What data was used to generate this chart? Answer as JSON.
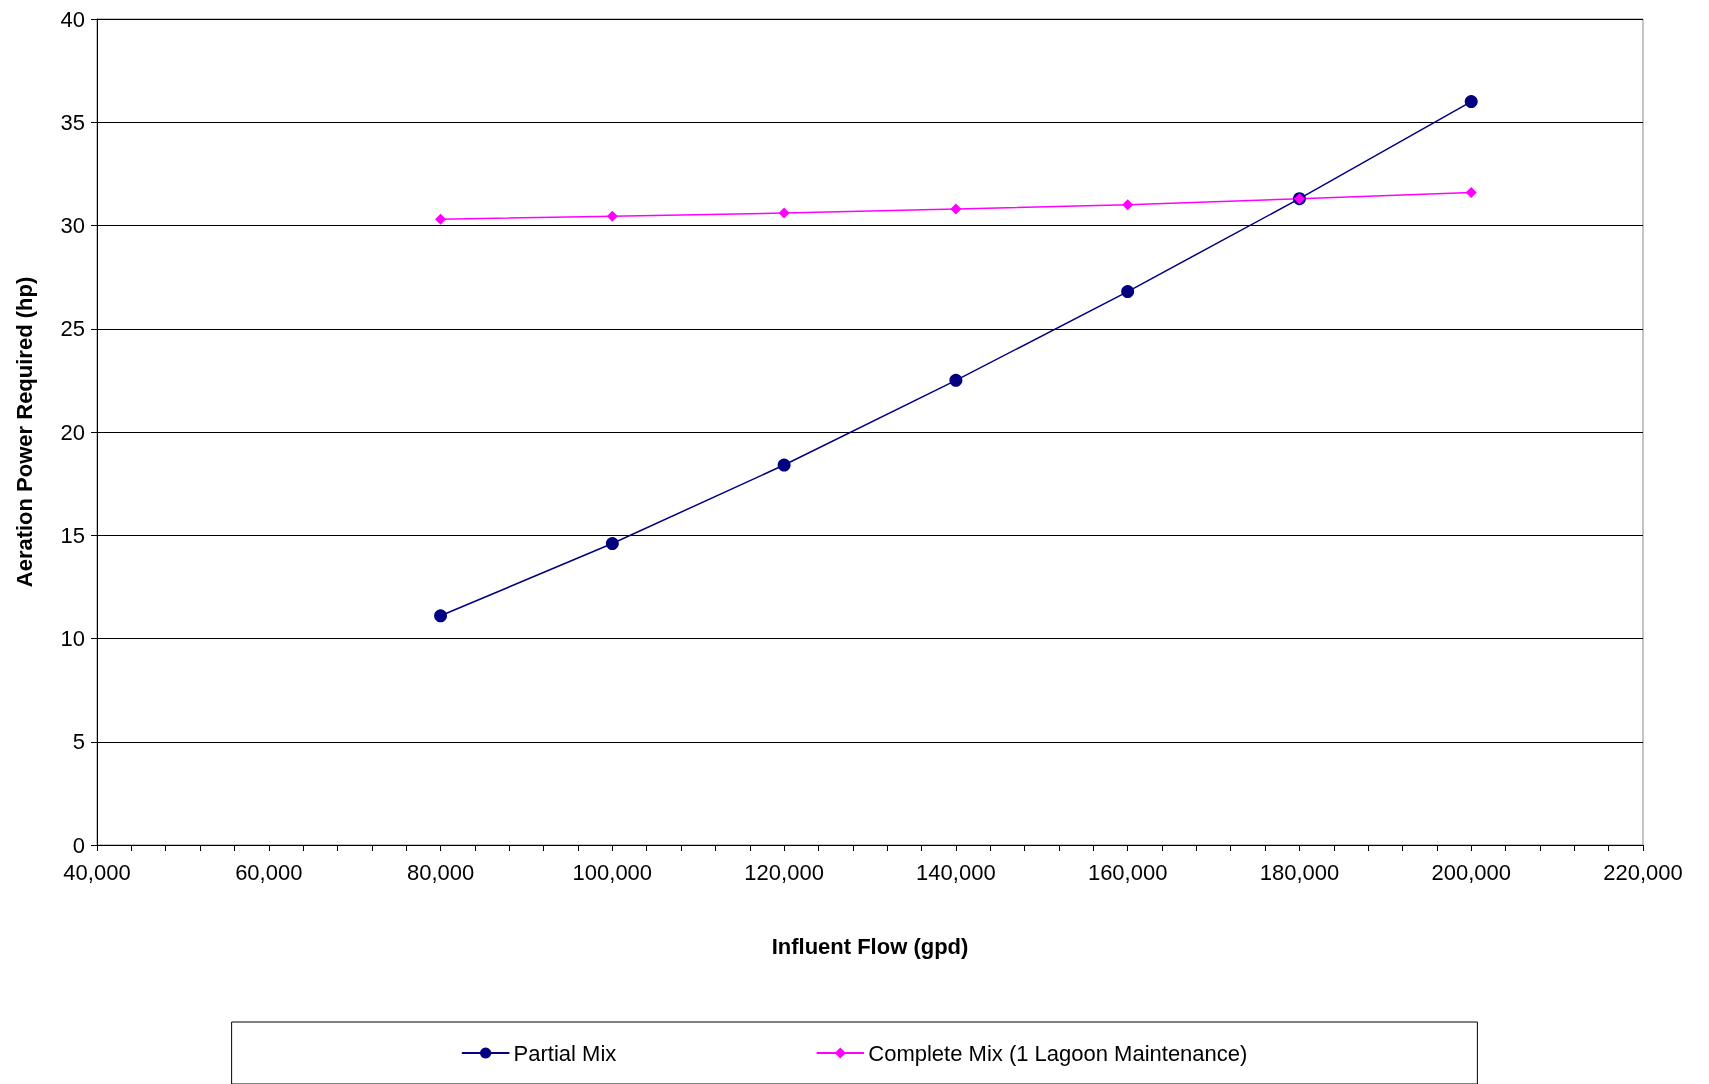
{
  "chart_data": {
    "type": "line",
    "xlabel": "Influent Flow (gpd)",
    "ylabel": "Aeration Power Required (hp)",
    "xlim": [
      40000,
      220000
    ],
    "xticks": [
      {
        "value": 40000,
        "label": "40,000"
      },
      {
        "value": 44000,
        "label": null
      },
      {
        "value": 48000,
        "label": null
      },
      {
        "value": 52000,
        "label": null
      },
      {
        "value": 56000,
        "label": null
      },
      {
        "value": 60000,
        "label": "60,000"
      },
      {
        "value": 64000,
        "label": null
      },
      {
        "value": 68000,
        "label": null
      },
      {
        "value": 72000,
        "label": null
      },
      {
        "value": 76000,
        "label": null
      },
      {
        "value": 80000,
        "label": "80,000"
      },
      {
        "value": 84000,
        "label": null
      },
      {
        "value": 88000,
        "label": null
      },
      {
        "value": 92000,
        "label": null
      },
      {
        "value": 96000,
        "label": null
      },
      {
        "value": 100000,
        "label": "100,000"
      },
      {
        "value": 104000,
        "label": null
      },
      {
        "value": 108000,
        "label": null
      },
      {
        "value": 112000,
        "label": null
      },
      {
        "value": 116000,
        "label": null
      },
      {
        "value": 120000,
        "label": "120,000"
      },
      {
        "value": 124000,
        "label": null
      },
      {
        "value": 128000,
        "label": null
      },
      {
        "value": 132000,
        "label": null
      },
      {
        "value": 136000,
        "label": null
      },
      {
        "value": 140000,
        "label": "140,000"
      },
      {
        "value": 144000,
        "label": null
      },
      {
        "value": 148000,
        "label": null
      },
      {
        "value": 152000,
        "label": null
      },
      {
        "value": 156000,
        "label": null
      },
      {
        "value": 160000,
        "label": "160,000"
      },
      {
        "value": 164000,
        "label": null
      },
      {
        "value": 168000,
        "label": null
      },
      {
        "value": 172000,
        "label": null
      },
      {
        "value": 176000,
        "label": null
      },
      {
        "value": 180000,
        "label": "180,000"
      },
      {
        "value": 184000,
        "label": null
      },
      {
        "value": 188000,
        "label": null
      },
      {
        "value": 192000,
        "label": null
      },
      {
        "value": 196000,
        "label": null
      },
      {
        "value": 200000,
        "label": "200,000"
      },
      {
        "value": 204000,
        "label": null
      },
      {
        "value": 208000,
        "label": null
      },
      {
        "value": 212000,
        "label": null
      },
      {
        "value": 216000,
        "label": null
      },
      {
        "value": 220000,
        "label": "220,000"
      }
    ],
    "ylim": [
      0,
      40
    ],
    "yticks": [
      0,
      5,
      10,
      15,
      20,
      25,
      30,
      35,
      40
    ],
    "grid": "y",
    "legend": "bottom",
    "x": [
      80000,
      100000,
      120000,
      140000,
      160000,
      180000,
      200000
    ],
    "series": [
      {
        "name": "Partial Mix",
        "color": "#000080",
        "marker": "circle",
        "values": [
          11.1,
          14.6,
          18.4,
          22.5,
          26.8,
          31.3,
          36.0
        ]
      },
      {
        "name": "Complete Mix (1 Lagoon Maintenance)",
        "color": "#ff00ff",
        "marker": "diamond",
        "values": [
          30.3,
          30.45,
          30.6,
          30.8,
          31.0,
          31.3,
          31.6
        ]
      }
    ]
  }
}
